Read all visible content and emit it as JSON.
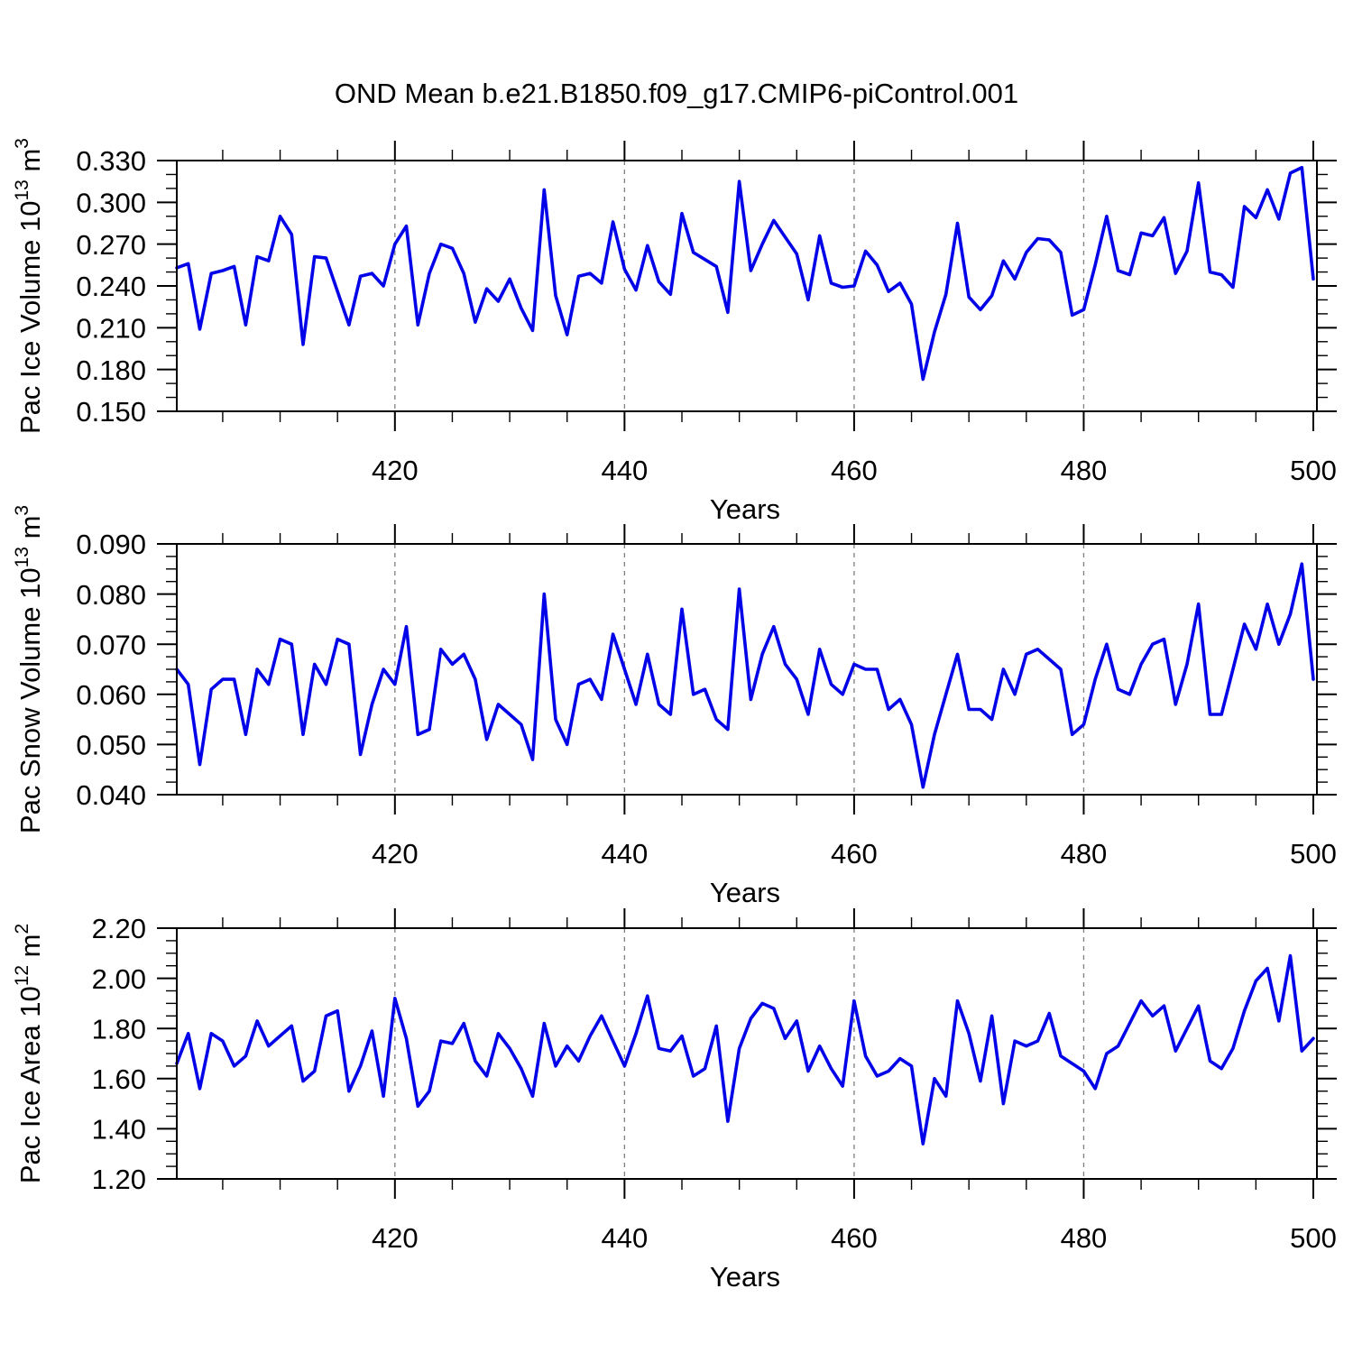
{
  "title": "OND Mean b.e21.B1850.f09_g17.CMIP6-piControl.001",
  "colors": {
    "line": "#0202e8",
    "grid": "#7f7f7f",
    "axis": "#000000",
    "text": "#000000",
    "background": "#ffffff"
  },
  "chart_data": [
    {
      "type": "line",
      "name": "pac-ice-volume",
      "ylabel_parts": [
        {
          "t": "Pac Ice Volume 10"
        },
        {
          "t": "13",
          "sup": true
        },
        {
          "t": " m"
        },
        {
          "t": "3",
          "sup": true
        }
      ],
      "xlabel": "Years",
      "x_range": [
        401,
        500
      ],
      "x_step": 1,
      "ylim": [
        0.15,
        0.33
      ],
      "ytick_values": [
        0.33,
        0.3,
        0.27,
        0.24,
        0.21,
        0.18,
        0.15
      ],
      "ytick_labels": [
        "0.330",
        "0.300",
        "0.270",
        "0.240",
        "0.210",
        "0.180",
        "0.150"
      ],
      "ytick_minor_step": 0.01,
      "xtick_values": [
        420,
        440,
        460,
        480,
        500
      ],
      "xtick_labels": [
        "420",
        "440",
        "460",
        "480",
        "500"
      ],
      "xtick_minor_step": 5,
      "grid_x": [
        420,
        440,
        460,
        480
      ],
      "values": [
        0.253,
        0.256,
        0.209,
        0.249,
        0.251,
        0.254,
        0.212,
        0.261,
        0.258,
        0.29,
        0.277,
        0.198,
        0.261,
        0.26,
        0.236,
        0.212,
        0.247,
        0.249,
        0.24,
        0.27,
        0.283,
        0.212,
        0.249,
        0.27,
        0.267,
        0.249,
        0.214,
        0.238,
        0.229,
        0.245,
        0.224,
        0.208,
        0.309,
        0.233,
        0.205,
        0.247,
        0.249,
        0.242,
        0.286,
        0.252,
        0.237,
        0.269,
        0.243,
        0.234,
        0.292,
        0.264,
        0.259,
        0.254,
        0.221,
        0.315,
        0.251,
        0.27,
        0.287,
        0.275,
        0.263,
        0.23,
        0.276,
        0.242,
        0.239,
        0.24,
        0.265,
        0.255,
        0.236,
        0.242,
        0.227,
        0.173,
        0.207,
        0.234,
        0.285,
        0.232,
        0.223,
        0.233,
        0.258,
        0.245,
        0.264,
        0.274,
        0.273,
        0.264,
        0.219,
        0.223,
        0.255,
        0.29,
        0.251,
        0.248,
        0.278,
        0.276,
        0.289,
        0.249,
        0.265,
        0.314,
        0.25,
        0.248,
        0.239,
        0.297,
        0.289,
        0.309,
        0.288,
        0.321,
        0.325,
        0.245
      ]
    },
    {
      "type": "line",
      "name": "pac-snow-volume",
      "ylabel_parts": [
        {
          "t": "Pac Snow Volume 10"
        },
        {
          "t": "13",
          "sup": true
        },
        {
          "t": " m"
        },
        {
          "t": "3",
          "sup": true
        }
      ],
      "xlabel": "Years",
      "x_range": [
        401,
        500
      ],
      "x_step": 1,
      "ylim": [
        0.04,
        0.09
      ],
      "ytick_values": [
        0.09,
        0.08,
        0.07,
        0.06,
        0.05,
        0.04
      ],
      "ytick_labels": [
        "0.090",
        "0.080",
        "0.070",
        "0.060",
        "0.050",
        "0.040"
      ],
      "ytick_minor_step": 0.0025,
      "xtick_values": [
        420,
        440,
        460,
        480,
        500
      ],
      "xtick_labels": [
        "420",
        "440",
        "460",
        "480",
        "500"
      ],
      "xtick_minor_step": 5,
      "grid_x": [
        420,
        440,
        460,
        480
      ],
      "values": [
        0.065,
        0.062,
        0.046,
        0.061,
        0.063,
        0.063,
        0.052,
        0.065,
        0.062,
        0.071,
        0.07,
        0.052,
        0.066,
        0.062,
        0.071,
        0.07,
        0.048,
        0.058,
        0.065,
        0.062,
        0.0735,
        0.052,
        0.053,
        0.069,
        0.066,
        0.068,
        0.063,
        0.051,
        0.058,
        0.056,
        0.054,
        0.047,
        0.08,
        0.055,
        0.05,
        0.062,
        0.063,
        0.059,
        0.072,
        0.065,
        0.058,
        0.068,
        0.058,
        0.056,
        0.077,
        0.06,
        0.061,
        0.055,
        0.053,
        0.081,
        0.059,
        0.068,
        0.0735,
        0.066,
        0.063,
        0.056,
        0.069,
        0.062,
        0.06,
        0.066,
        0.065,
        0.065,
        0.057,
        0.059,
        0.054,
        0.0415,
        0.052,
        0.06,
        0.068,
        0.057,
        0.057,
        0.055,
        0.065,
        0.06,
        0.068,
        0.069,
        0.067,
        0.065,
        0.052,
        0.054,
        0.063,
        0.07,
        0.061,
        0.06,
        0.066,
        0.07,
        0.071,
        0.058,
        0.066,
        0.078,
        0.056,
        0.056,
        0.065,
        0.074,
        0.069,
        0.078,
        0.07,
        0.076,
        0.086,
        0.063
      ]
    },
    {
      "type": "line",
      "name": "pac-ice-area",
      "ylabel_parts": [
        {
          "t": "Pac Ice Area 10"
        },
        {
          "t": "12",
          "sup": true
        },
        {
          "t": " m"
        },
        {
          "t": "2",
          "sup": true
        }
      ],
      "xlabel": "Years",
      "x_range": [
        401,
        500
      ],
      "x_step": 1,
      "ylim": [
        1.2,
        2.2
      ],
      "ytick_values": [
        2.2,
        2.0,
        1.8,
        1.6,
        1.4,
        1.2
      ],
      "ytick_labels": [
        "2.20",
        "2.00",
        "1.80",
        "1.60",
        "1.40",
        "1.20"
      ],
      "ytick_minor_step": 0.05,
      "xtick_values": [
        420,
        440,
        460,
        480,
        500
      ],
      "xtick_labels": [
        "420",
        "440",
        "460",
        "480",
        "500"
      ],
      "xtick_minor_step": 5,
      "grid_x": [
        420,
        440,
        460,
        480
      ],
      "values": [
        1.66,
        1.78,
        1.56,
        1.78,
        1.75,
        1.65,
        1.69,
        1.83,
        1.73,
        1.77,
        1.81,
        1.59,
        1.63,
        1.85,
        1.87,
        1.55,
        1.65,
        1.79,
        1.53,
        1.92,
        1.76,
        1.49,
        1.55,
        1.75,
        1.74,
        1.82,
        1.67,
        1.61,
        1.78,
        1.72,
        1.64,
        1.53,
        1.82,
        1.65,
        1.73,
        1.67,
        1.77,
        1.85,
        1.75,
        1.65,
        1.78,
        1.93,
        1.72,
        1.71,
        1.77,
        1.61,
        1.64,
        1.81,
        1.43,
        1.72,
        1.84,
        1.9,
        1.88,
        1.76,
        1.83,
        1.63,
        1.73,
        1.64,
        1.57,
        1.91,
        1.69,
        1.61,
        1.63,
        1.68,
        1.65,
        1.34,
        1.6,
        1.53,
        1.91,
        1.78,
        1.59,
        1.85,
        1.5,
        1.75,
        1.73,
        1.75,
        1.86,
        1.69,
        1.66,
        1.63,
        1.56,
        1.7,
        1.73,
        1.82,
        1.91,
        1.85,
        1.89,
        1.71,
        1.8,
        1.89,
        1.67,
        1.64,
        1.72,
        1.87,
        1.99,
        2.04,
        1.83,
        2.09,
        1.71,
        1.76
      ]
    }
  ]
}
